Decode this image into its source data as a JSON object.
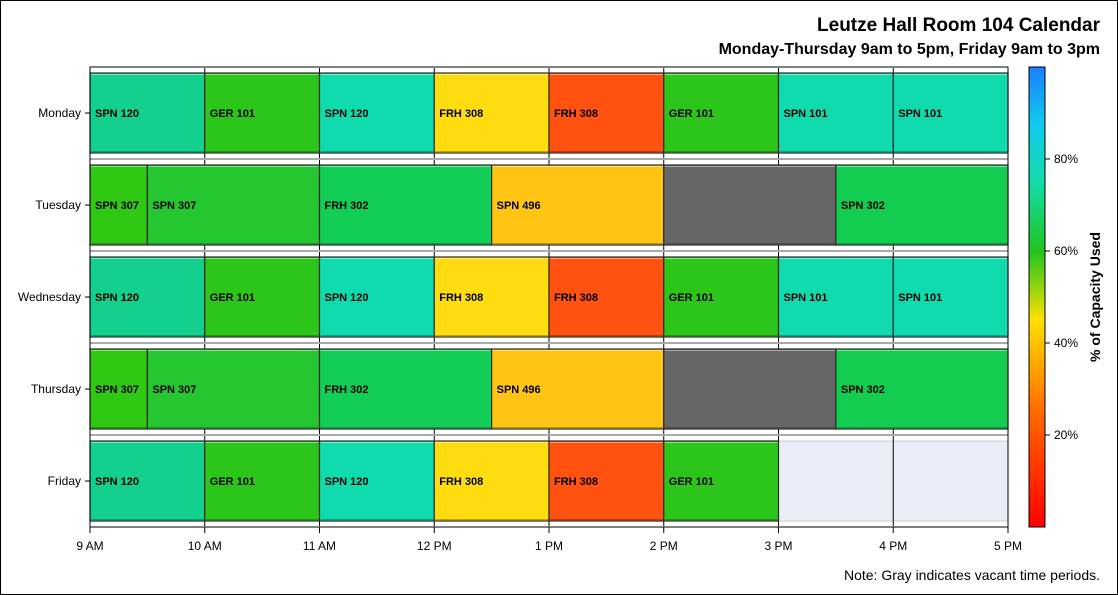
{
  "chart_data": {
    "type": "bar",
    "title": "Leutze Hall Room 104 Calendar",
    "subtitle": "Monday-Thursday 9am to 5pm, Friday 9am to 3pm",
    "note": "Note: Gray indicates vacant time periods.",
    "x_range_hours": [
      9,
      17
    ],
    "x_ticks": [
      {
        "hour": 9,
        "label": "9 AM"
      },
      {
        "hour": 10,
        "label": "10 AM"
      },
      {
        "hour": 11,
        "label": "11 AM"
      },
      {
        "hour": 12,
        "label": "12 PM"
      },
      {
        "hour": 13,
        "label": "1 PM"
      },
      {
        "hour": 14,
        "label": "2 PM"
      },
      {
        "hour": 15,
        "label": "3 PM"
      },
      {
        "hour": 16,
        "label": "4 PM"
      },
      {
        "hour": 17,
        "label": "5 PM"
      }
    ],
    "days": [
      {
        "name": "Monday",
        "blocks": [
          {
            "start": 9,
            "end": 10,
            "label": "SPN 120",
            "color": "#13D08E"
          },
          {
            "start": 10,
            "end": 11,
            "label": "GER 101",
            "color": "#2CC51A"
          },
          {
            "start": 11,
            "end": 12,
            "label": "SPN 120",
            "color": "#10DBAE"
          },
          {
            "start": 12,
            "end": 13,
            "label": "FRH 308",
            "color": "#FFDC10"
          },
          {
            "start": 13,
            "end": 14,
            "label": "FRH 308",
            "color": "#FF5211"
          },
          {
            "start": 14,
            "end": 15,
            "label": "GER 101",
            "color": "#2CC51A"
          },
          {
            "start": 15,
            "end": 16,
            "label": "SPN 101",
            "color": "#10DBAE"
          },
          {
            "start": 16,
            "end": 17,
            "label": "SPN 101",
            "color": "#10DBAE"
          }
        ]
      },
      {
        "name": "Tuesday",
        "blocks": [
          {
            "start": 9,
            "end": 9.5,
            "label": "SPN 307",
            "color": "#2FC812"
          },
          {
            "start": 9.5,
            "end": 11,
            "label": "SPN 307",
            "color": "#25C730"
          },
          {
            "start": 11,
            "end": 12.5,
            "label": "FRH 302",
            "color": "#12CD56"
          },
          {
            "start": 12.5,
            "end": 14,
            "label": "SPN 496",
            "color": "#FFC414"
          },
          {
            "start": 14,
            "end": 15.5,
            "label": "",
            "color": "#666666"
          },
          {
            "start": 15.5,
            "end": 17,
            "label": "SPN 302",
            "color": "#12CD50"
          }
        ]
      },
      {
        "name": "Wednesday",
        "blocks": [
          {
            "start": 9,
            "end": 10,
            "label": "SPN 120",
            "color": "#13D08E"
          },
          {
            "start": 10,
            "end": 11,
            "label": "GER 101",
            "color": "#2CC51A"
          },
          {
            "start": 11,
            "end": 12,
            "label": "SPN 120",
            "color": "#10DBAE"
          },
          {
            "start": 12,
            "end": 13,
            "label": "FRH 308",
            "color": "#FFDC10"
          },
          {
            "start": 13,
            "end": 14,
            "label": "FRH 308",
            "color": "#FF5211"
          },
          {
            "start": 14,
            "end": 15,
            "label": "GER 101",
            "color": "#2CC51A"
          },
          {
            "start": 15,
            "end": 16,
            "label": "SPN 101",
            "color": "#10DBAE"
          },
          {
            "start": 16,
            "end": 17,
            "label": "SPN 101",
            "color": "#10DBAE"
          }
        ]
      },
      {
        "name": "Thursday",
        "blocks": [
          {
            "start": 9,
            "end": 9.5,
            "label": "SPN 307",
            "color": "#2FC812"
          },
          {
            "start": 9.5,
            "end": 11,
            "label": "SPN 307",
            "color": "#25C730"
          },
          {
            "start": 11,
            "end": 12.5,
            "label": "FRH 302",
            "color": "#12CD56"
          },
          {
            "start": 12.5,
            "end": 14,
            "label": "SPN 496",
            "color": "#FFC414"
          },
          {
            "start": 14,
            "end": 15.5,
            "label": "",
            "color": "#666666"
          },
          {
            "start": 15.5,
            "end": 17,
            "label": "SPN 302",
            "color": "#12CD50"
          }
        ]
      },
      {
        "name": "Friday",
        "blocks": [
          {
            "start": 9,
            "end": 10,
            "label": "SPN 120",
            "color": "#13D08E"
          },
          {
            "start": 10,
            "end": 11,
            "label": "GER 101",
            "color": "#2CC51A"
          },
          {
            "start": 11,
            "end": 12,
            "label": "SPN 120",
            "color": "#10DBAE"
          },
          {
            "start": 12,
            "end": 13,
            "label": "FRH 308",
            "color": "#FFDC10"
          },
          {
            "start": 13,
            "end": 14,
            "label": "FRH 308",
            "color": "#FF5211"
          },
          {
            "start": 14,
            "end": 15,
            "label": "GER 101",
            "color": "#2CC51A"
          }
        ]
      }
    ],
    "colorbar": {
      "label": "% of Capacity Used",
      "range_percent": [
        0,
        100
      ],
      "ticks": [
        {
          "value": 20,
          "label": "20%"
        },
        {
          "value": 40,
          "label": "40%"
        },
        {
          "value": 60,
          "label": "60%"
        },
        {
          "value": 80,
          "label": "80%"
        }
      ],
      "stops": [
        {
          "value": 0,
          "color": "#FF0000"
        },
        {
          "value": 25,
          "color": "#FF6A00"
        },
        {
          "value": 45,
          "color": "#FFE000"
        },
        {
          "value": 60,
          "color": "#1FC51F"
        },
        {
          "value": 75,
          "color": "#11DDAA"
        },
        {
          "value": 88,
          "color": "#10C8F0"
        },
        {
          "value": 100,
          "color": "#1A80FF"
        }
      ]
    },
    "grid": true,
    "empty_fill": "#E9EDF6"
  }
}
